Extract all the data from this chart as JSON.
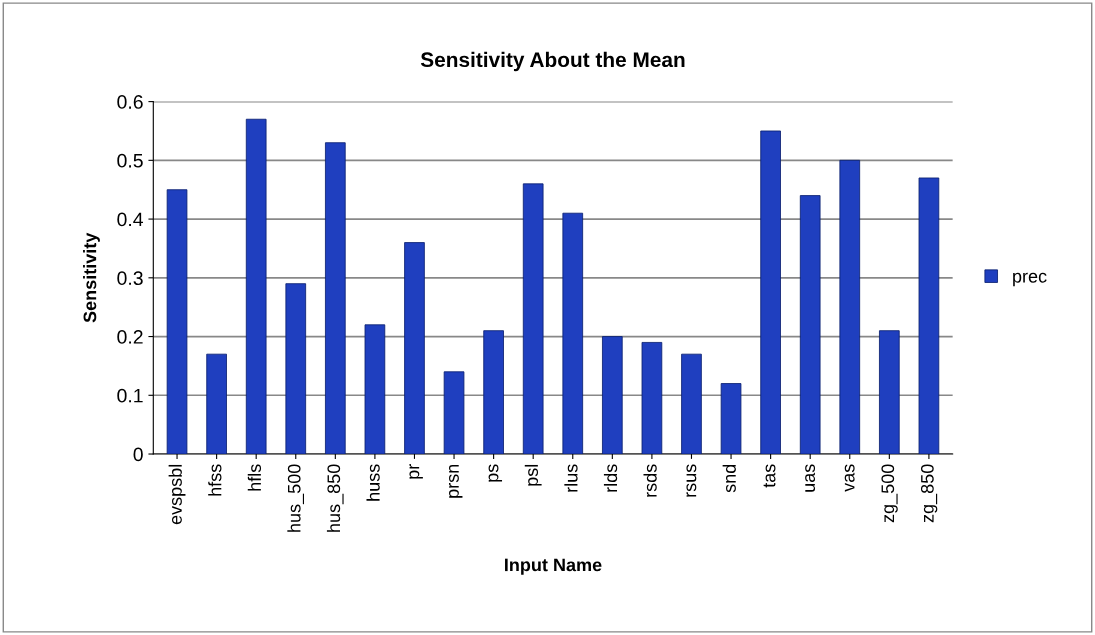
{
  "chart_data": {
    "type": "bar",
    "title": "Sensitivity About the Mean",
    "xlabel": "Input Name",
    "ylabel": "Sensitivity",
    "categories": [
      "evspsbl",
      "hfss",
      "hfls",
      "hus_500",
      "hus_850",
      "huss",
      "pr",
      "prsn",
      "ps",
      "psl",
      "rlus",
      "rlds",
      "rsds",
      "rsus",
      "snd",
      "tas",
      "uas",
      "vas",
      "zg_500",
      "zg_850"
    ],
    "series": [
      {
        "name": "prec",
        "color": "#1f3fbf",
        "values": [
          0.45,
          0.17,
          0.57,
          0.29,
          0.53,
          0.22,
          0.36,
          0.14,
          0.21,
          0.46,
          0.41,
          0.2,
          0.19,
          0.17,
          0.12,
          0.55,
          0.44,
          0.5,
          0.21,
          0.47
        ]
      }
    ],
    "ylim": [
      0,
      0.6
    ],
    "yticks": [
      0,
      0.1,
      0.2,
      0.3,
      0.4,
      0.5,
      0.6
    ],
    "grid": "y",
    "legend": "right"
  }
}
